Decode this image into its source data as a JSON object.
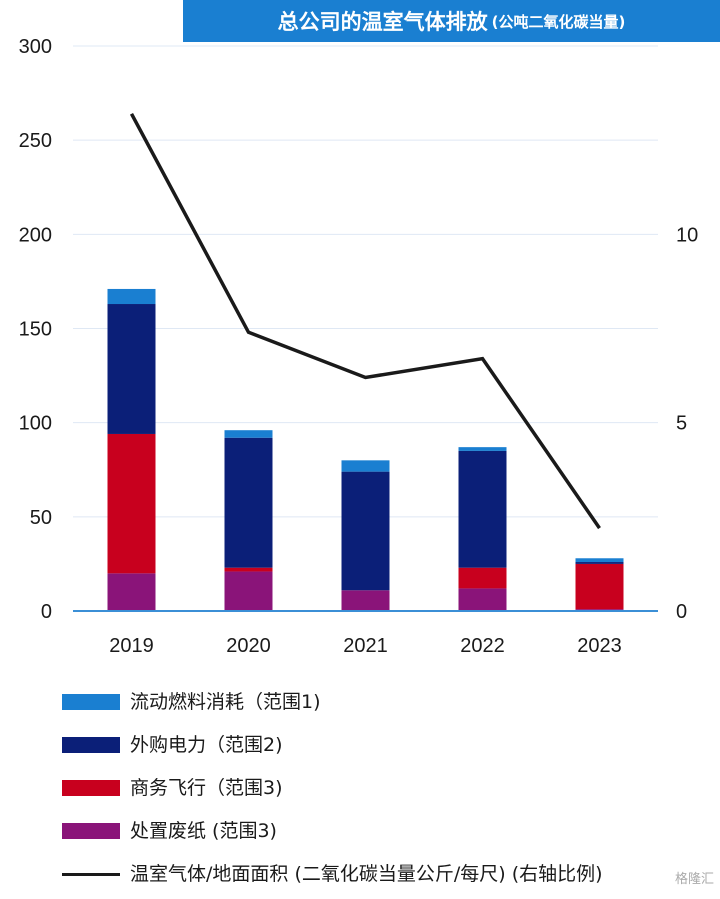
{
  "header": {
    "title": "总公司的温室气体排放",
    "subtitle": "(公吨二氧化碳当量)"
  },
  "colors": {
    "scope1_fuel": "#1a7fd1",
    "scope2_power": "#0b1f78",
    "scope3_flight": "#c8001e",
    "scope3_paper": "#8a1479",
    "intensity_line": "#1a1a1a",
    "axis": "#3b8fd6",
    "grid": "#dfe8f4",
    "title_bg": "#1a7fd1"
  },
  "chart_data": {
    "type": "bar",
    "stacked": true,
    "categories": [
      "2019",
      "2020",
      "2021",
      "2022",
      "2023"
    ],
    "series": [
      {
        "name": "处置废纸 (范围3)",
        "values": [
          20,
          21,
          11,
          12,
          1
        ]
      },
      {
        "name": "商务飞行 (范围3)",
        "values": [
          74,
          2,
          0,
          11,
          24
        ]
      },
      {
        "name": "外购电力 (范围2)",
        "values": [
          69,
          69,
          63,
          62,
          1
        ]
      },
      {
        "name": "流动燃料消耗 (范围1)",
        "values": [
          8,
          4,
          6,
          2,
          2
        ]
      }
    ],
    "line_series": {
      "name": "温室气体/地面面积 (二氧化碳当量公斤/每尺) (右轴比例)",
      "axis": "right",
      "values": [
        13.2,
        7.4,
        6.2,
        6.7,
        2.2
      ]
    },
    "ylim": [
      0,
      300
    ],
    "y_ticks": [
      0,
      50,
      100,
      150,
      200,
      250,
      300
    ],
    "y2lim": [
      0,
      15
    ],
    "y2_ticks": [
      0,
      5,
      10
    ],
    "grid": true,
    "legend_position": "bottom",
    "title": "总公司的温室气体排放 (公吨二氧化碳当量)"
  },
  "legend": {
    "items": [
      {
        "label": "流动燃料消耗（范围1)",
        "color": "#1a7fd1",
        "kind": "bar"
      },
      {
        "label": "外购电力（范围2)",
        "color": "#0b1f78",
        "kind": "bar"
      },
      {
        "label": "商务飞行（范围3)",
        "color": "#c8001e",
        "kind": "bar"
      },
      {
        "label": "处置废纸 (范围3)",
        "color": "#8a1479",
        "kind": "bar"
      },
      {
        "label": "温室气体/地面面积 (二氧化碳当量公斤/每尺) (右轴比例)",
        "color": "#1a1a1a",
        "kind": "line"
      }
    ]
  },
  "watermark": {
    "text": "格隆汇"
  }
}
